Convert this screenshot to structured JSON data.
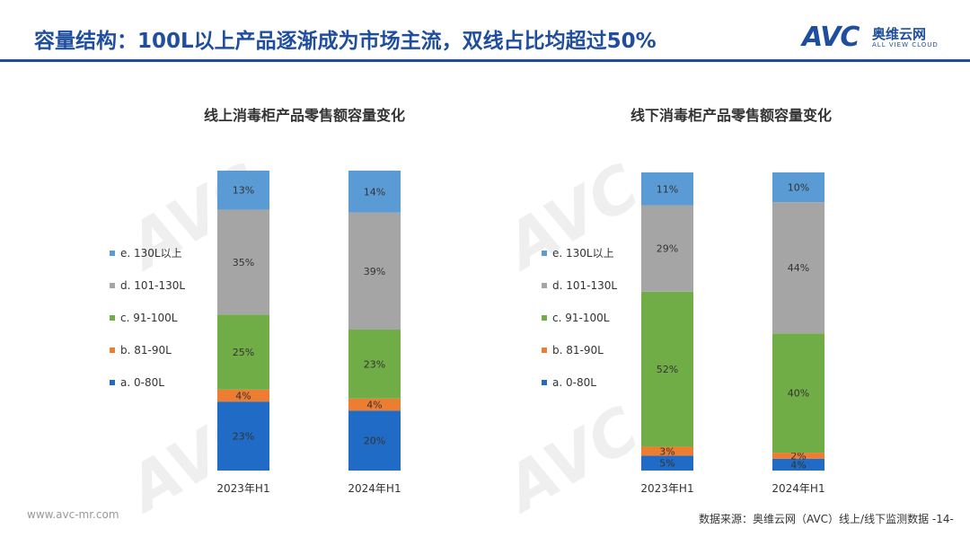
{
  "header": {
    "title": "容量结构：100L以上产品逐渐成为市场主流，双线占比均超过50%",
    "logo_text": "AVC",
    "logo_cn": "奥维云网",
    "logo_en": "ALL VIEW CLOUD"
  },
  "colors": {
    "accent": "#1f4e9e",
    "a": "#1f6bc5",
    "b": "#ed7d31",
    "c": "#70ad47",
    "d": "#a5a5a5",
    "e": "#5b9bd5"
  },
  "chart_data": [
    {
      "type": "bar",
      "stacked": true,
      "percent": true,
      "title": "线上消毒柜产品零售额容量变化",
      "categories": [
        "2023年H1",
        "2024年H1"
      ],
      "series": [
        {
          "name": "a. 0-80L",
          "key": "a",
          "values": [
            23,
            20
          ]
        },
        {
          "name": "b. 81-90L",
          "key": "b",
          "values": [
            4,
            4
          ]
        },
        {
          "name": "c. 91-100L",
          "key": "c",
          "values": [
            25,
            23
          ]
        },
        {
          "name": "d. 101-130L",
          "key": "d",
          "values": [
            35,
            39
          ]
        },
        {
          "name": "e. 130L以上",
          "key": "e",
          "values": [
            13,
            14
          ]
        }
      ],
      "legend": "left",
      "ylim": [
        0,
        100
      ]
    },
    {
      "type": "bar",
      "stacked": true,
      "percent": true,
      "title": "线下消毒柜产品零售额容量变化",
      "categories": [
        "2023年H1",
        "2024年H1"
      ],
      "series": [
        {
          "name": "a. 0-80L",
          "key": "a",
          "values": [
            5,
            4
          ]
        },
        {
          "name": "b. 81-90L",
          "key": "b",
          "values": [
            3,
            2
          ]
        },
        {
          "name": "c. 91-100L",
          "key": "c",
          "values": [
            52,
            40
          ]
        },
        {
          "name": "d. 101-130L",
          "key": "d",
          "values": [
            29,
            44
          ]
        },
        {
          "name": "e. 130L以上",
          "key": "e",
          "values": [
            11,
            10
          ]
        }
      ],
      "legend": "left",
      "ylim": [
        0,
        100
      ]
    }
  ],
  "footer": {
    "website": "www.avc-mr.com",
    "source": "数据来源：奥维云网（AVC）线上/线下监测数据",
    "page": "-14-"
  }
}
